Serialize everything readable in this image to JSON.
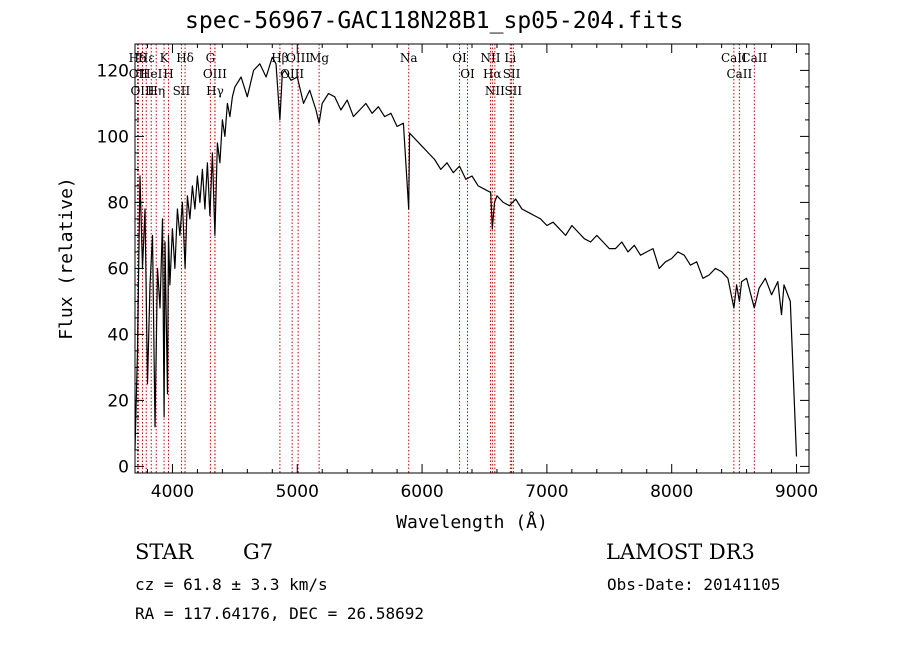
{
  "title": "spec-56967-GAC118N28B1_sp05-204.fits",
  "object_class": "STAR",
  "subclass": "G7",
  "survey": "LAMOST DR3",
  "velocity": "cz = 61.8 ± 3.3 km/s",
  "obs_date": "Obs-Date: 20141105",
  "coords": "RA = 117.64176, DEC =  26.58692",
  "colors": {
    "spectrum": "#000000",
    "line_marker": "#cc0000"
  },
  "chart_data": {
    "type": "line",
    "xlabel": "Wavelength (Å)",
    "ylabel": "Flux (relative)",
    "xlim": [
      3700,
      9100
    ],
    "ylim": [
      -2,
      128
    ],
    "xticks": [
      4000,
      5000,
      6000,
      7000,
      8000,
      9000
    ],
    "yticks": [
      0,
      20,
      40,
      60,
      80,
      100,
      120
    ],
    "grid": false,
    "series": [
      {
        "x": [
          3700,
          3720,
          3740,
          3760,
          3780,
          3800,
          3820,
          3840,
          3860,
          3880,
          3900,
          3920,
          3933,
          3940,
          3960,
          3968,
          3980,
          4000,
          4020,
          4040,
          4060,
          4080,
          4101,
          4120,
          4140,
          4160,
          4180,
          4200,
          4220,
          4240,
          4260,
          4280,
          4300,
          4320,
          4340,
          4360,
          4380,
          4400,
          4420,
          4440,
          4460,
          4480,
          4500,
          4550,
          4600,
          4650,
          4700,
          4750,
          4800,
          4830,
          4861,
          4880,
          4900,
          4950,
          5000,
          5050,
          5100,
          5150,
          5175,
          5200,
          5250,
          5300,
          5350,
          5400,
          5450,
          5500,
          5550,
          5600,
          5650,
          5700,
          5750,
          5800,
          5850,
          5893,
          5900,
          5950,
          6000,
          6050,
          6100,
          6150,
          6200,
          6250,
          6300,
          6350,
          6400,
          6450,
          6500,
          6550,
          6563,
          6580,
          6600,
          6650,
          6700,
          6750,
          6800,
          6850,
          6900,
          6950,
          7000,
          7050,
          7100,
          7150,
          7200,
          7250,
          7300,
          7350,
          7400,
          7450,
          7500,
          7550,
          7600,
          7650,
          7700,
          7750,
          7800,
          7850,
          7900,
          7950,
          8000,
          8050,
          8100,
          8150,
          8200,
          8250,
          8300,
          8350,
          8400,
          8450,
          8498,
          8520,
          8542,
          8560,
          8600,
          8662,
          8700,
          8750,
          8800,
          8850,
          8880,
          8900,
          8950,
          9000
        ],
        "y": [
          5,
          35,
          88,
          60,
          78,
          25,
          55,
          70,
          12,
          60,
          48,
          75,
          15,
          68,
          22,
          70,
          55,
          72,
          60,
          78,
          70,
          80,
          60,
          82,
          75,
          85,
          78,
          88,
          80,
          90,
          78,
          92,
          76,
          95,
          70,
          98,
          92,
          105,
          100,
          110,
          106,
          112,
          115,
          118,
          112,
          120,
          122,
          118,
          124,
          122,
          105,
          119,
          120,
          117,
          118,
          110,
          114,
          108,
          104,
          110,
          113,
          112,
          108,
          111,
          106,
          108,
          110,
          107,
          109,
          106,
          107,
          103,
          104,
          78,
          101,
          99,
          97,
          95,
          93,
          90,
          92,
          89,
          91,
          87,
          88,
          85,
          84,
          83,
          72,
          80,
          82,
          80,
          79,
          81,
          78,
          77,
          76,
          75,
          73,
          74,
          72,
          70,
          73,
          71,
          69,
          68,
          70,
          68,
          66,
          66,
          68,
          65,
          67,
          64,
          65,
          66,
          60,
          62,
          63,
          65,
          64,
          61,
          62,
          57,
          58,
          60,
          59,
          57,
          48,
          55,
          50,
          56,
          57,
          48,
          54,
          57,
          52,
          56,
          46,
          55,
          50,
          3
        ]
      }
    ],
    "annotations": [
      {
        "label": "Hδ",
        "x": 3720
      },
      {
        "label": "OII",
        "x": 3727
      },
      {
        "label": "OIII",
        "x": 3760
      },
      {
        "label": "Hε",
        "x": 3790
      },
      {
        "label": "HeI",
        "x": 3830
      },
      {
        "label": "Hη",
        "x": 3870
      },
      {
        "label": "K",
        "x": 3933
      },
      {
        "label": "H",
        "x": 3968
      },
      {
        "label": "SII",
        "x": 4072
      },
      {
        "label": "Hδ",
        "x": 4101
      },
      {
        "label": "G",
        "x": 4304
      },
      {
        "label": "OIII",
        "x": 4340
      },
      {
        "label": "Hγ",
        "x": 4341
      },
      {
        "label": "Hβ",
        "x": 4861
      },
      {
        "label": "OIII",
        "x": 4959
      },
      {
        "label": "OIII",
        "x": 5007
      },
      {
        "label": "Mg",
        "x": 5175
      },
      {
        "label": "Na",
        "x": 5893
      },
      {
        "label": "OI",
        "x": 6300
      },
      {
        "label": "OI",
        "x": 6364
      },
      {
        "label": "NII",
        "x": 6548
      },
      {
        "label": "Hα",
        "x": 6563
      },
      {
        "label": "NII",
        "x": 6583
      },
      {
        "label": "Li",
        "x": 6707
      },
      {
        "label": "SII",
        "x": 6717
      },
      {
        "label": "SII",
        "x": 6731
      },
      {
        "label": "CaII",
        "x": 8498
      },
      {
        "label": "CaII",
        "x": 8542
      },
      {
        "label": "CaII",
        "x": 8662
      }
    ]
  }
}
